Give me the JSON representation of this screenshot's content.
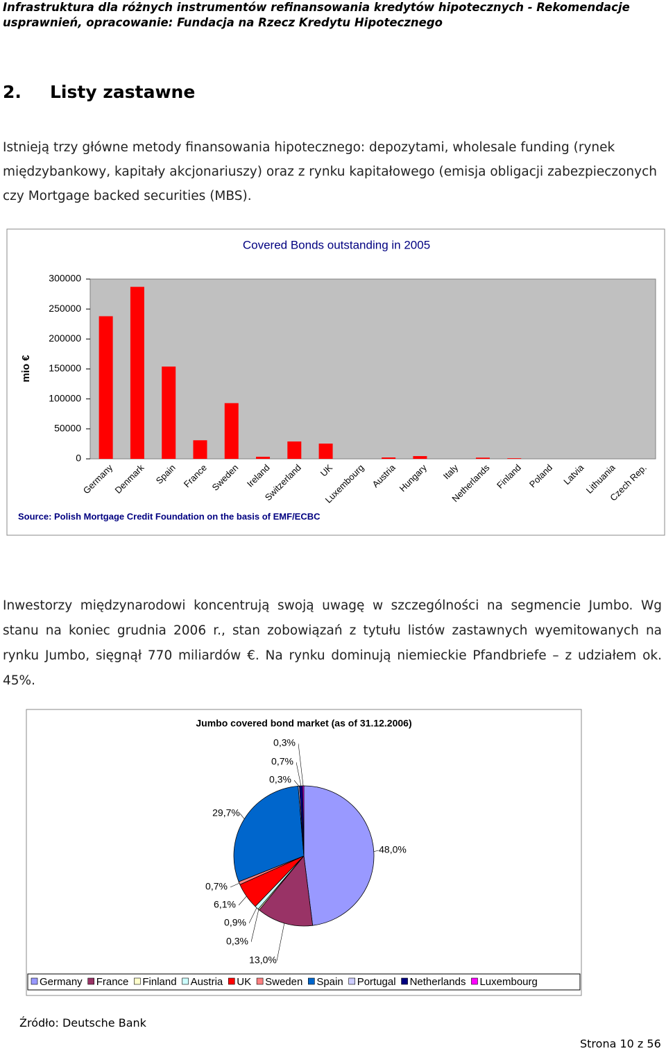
{
  "header": {
    "line1": "Infrastruktura dla różnych instrumentów refinansowania kredytów hipotecznych - Rekomendacje",
    "line2": "usprawnień, opracowanie: Fundacja na Rzecz Kredytu Hipotecznego"
  },
  "section": {
    "number": "2.",
    "title": "Listy zastawne"
  },
  "paragraphs": [
    "Istnieją trzy główne metody finansowania hipotecznego: depozytami, wholesale funding (rynek międzybankowy, kapitały akcjonariuszy) oraz z rynku kapitałowego (emisja obligacji zabezpieczonych czy Mortgage backed securities (MBS).",
    "Inwestorzy międzynarodowi koncentrują swoją uwagę w szczególności na segmencie Jumbo. Wg stanu na koniec grudnia 2006 r., stan zobowiązań z tytułu listów zastawnych wyemitowanych na rynku Jumbo, sięgnął 770 miliardów €. Na rynku dominują niemieckie Pfandbriefe – z udziałem ok. 45%."
  ],
  "source_note": "Źródło: Deutsche Bank",
  "footer": "Strona 10 z 56",
  "chart_data": [
    {
      "type": "bar",
      "title": "Covered Bonds outstanding in 2005",
      "ylabel": "mio €",
      "note": "Source: Polish Mortgage Credit Foundation on the basis of EMF/ECBC",
      "categories": [
        "Germany",
        "Denmark",
        "Spain",
        "France",
        "Sweden",
        "Ireland",
        "Switzerland",
        "UK",
        "Luxembourg",
        "Austria",
        "Hungary",
        "Italy",
        "Netherlands",
        "Finland",
        "Poland",
        "Latvia",
        "Lithuania",
        "Czech Rep."
      ],
      "values": [
        238000,
        287000,
        154000,
        31000,
        93000,
        3500,
        29000,
        25500,
        0,
        2300,
        4600,
        0,
        2000,
        1000,
        0,
        0,
        0,
        0
      ],
      "color": "#ff0000",
      "ylim": [
        0,
        300000
      ],
      "yticks": [
        0,
        50000,
        100000,
        150000,
        200000,
        250000,
        300000
      ]
    },
    {
      "type": "pie",
      "title": "Jumbo covered bond market (as of 31.12.2006)",
      "categories": [
        "Germany",
        "France",
        "Finland",
        "Austria",
        "UK",
        "Sweden",
        "Spain",
        "Portugal",
        "Netherlands",
        "Luxembourg"
      ],
      "values": [
        48.0,
        13.0,
        0.3,
        0.9,
        6.1,
        0.7,
        29.7,
        0.3,
        0.7,
        0.3
      ],
      "value_labels": [
        "48,0%",
        "13,0%",
        "0,3%",
        "0,9%",
        "6,1%",
        "0,7%",
        "29,7%",
        "0,3%",
        "0,7%",
        "0,3%"
      ],
      "colors": [
        "#9999ff",
        "#993366",
        "#ffffcc",
        "#ccffff",
        "#ff0000",
        "#ff8080",
        "#0066cc",
        "#ccccff",
        "#000080",
        "#ff00ff"
      ]
    }
  ]
}
